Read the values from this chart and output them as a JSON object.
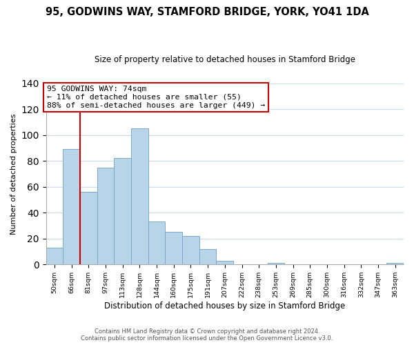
{
  "title": "95, GODWINS WAY, STAMFORD BRIDGE, YORK, YO41 1DA",
  "subtitle": "Size of property relative to detached houses in Stamford Bridge",
  "xlabel": "Distribution of detached houses by size in Stamford Bridge",
  "ylabel": "Number of detached properties",
  "bin_labels": [
    "50sqm",
    "66sqm",
    "81sqm",
    "97sqm",
    "113sqm",
    "128sqm",
    "144sqm",
    "160sqm",
    "175sqm",
    "191sqm",
    "207sqm",
    "222sqm",
    "238sqm",
    "253sqm",
    "269sqm",
    "285sqm",
    "300sqm",
    "316sqm",
    "332sqm",
    "347sqm",
    "363sqm"
  ],
  "bar_heights": [
    13,
    89,
    56,
    75,
    82,
    105,
    33,
    25,
    22,
    12,
    3,
    0,
    0,
    1,
    0,
    0,
    0,
    0,
    0,
    0,
    1
  ],
  "bar_color": "#b8d4e8",
  "bar_edge_color": "#7aaac8",
  "vline_color": "#cc0000",
  "annotation_text": "95 GODWINS WAY: 74sqm\n← 11% of detached houses are smaller (55)\n88% of semi-detached houses are larger (449) →",
  "annotation_box_edge_color": "#cc0000",
  "ylim": [
    0,
    140
  ],
  "yticks": [
    0,
    20,
    40,
    60,
    80,
    100,
    120,
    140
  ],
  "footer_line1": "Contains HM Land Registry data © Crown copyright and database right 2024.",
  "footer_line2": "Contains public sector information licensed under the Open Government Licence v3.0.",
  "bg_color": "#ffffff",
  "grid_color": "#ccdaeb"
}
